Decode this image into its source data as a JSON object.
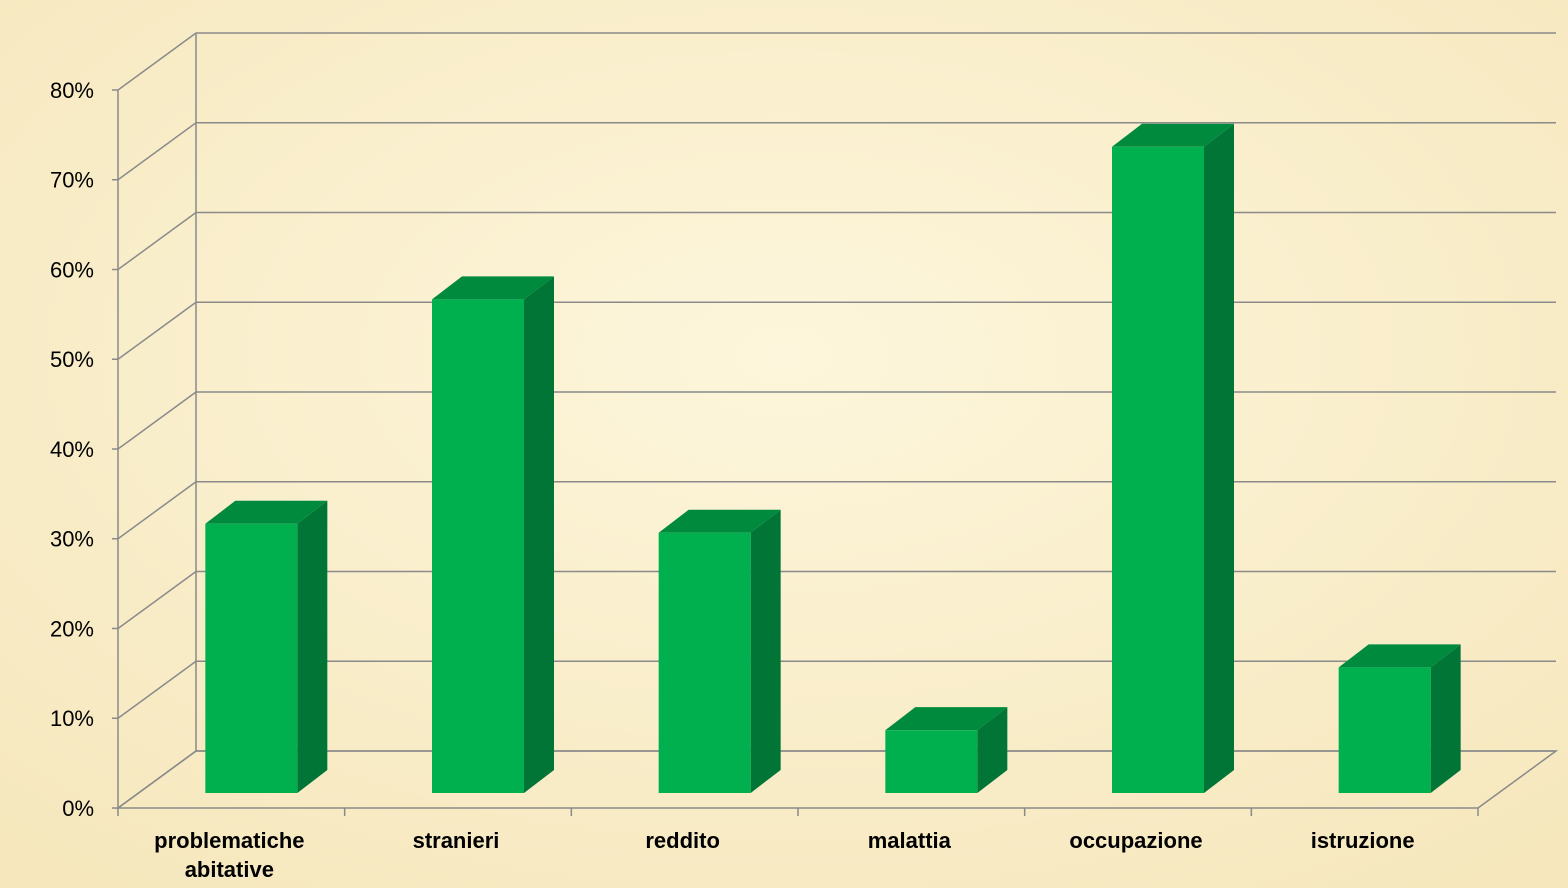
{
  "chart_data": {
    "type": "bar3d",
    "categories": [
      "problematiche abitative",
      "stranieri",
      "reddito",
      "malattia",
      "occupazione",
      "istruzione"
    ],
    "values": [
      30,
      55,
      29,
      7,
      72,
      14
    ],
    "color": "#00b04f",
    "ylim": [
      0,
      80
    ],
    "yticks": [
      {
        "value": 0,
        "label": "0%"
      },
      {
        "value": 10,
        "label": "10%"
      },
      {
        "value": 20,
        "label": "20%"
      },
      {
        "value": 30,
        "label": "30%"
      },
      {
        "value": 40,
        "label": "40%"
      },
      {
        "value": 50,
        "label": "50%"
      },
      {
        "value": 60,
        "label": "60%"
      },
      {
        "value": 70,
        "label": "70%"
      },
      {
        "value": 80,
        "label": "80%"
      }
    ],
    "grid": true
  }
}
